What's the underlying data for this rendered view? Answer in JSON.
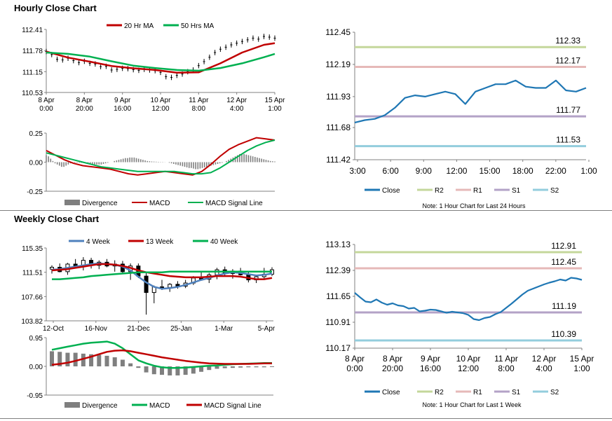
{
  "titles": {
    "hourly": "Hourly Close Chart",
    "weekly": "Weekly Close Chart"
  },
  "colors": {
    "ma_short": "#c00000",
    "ma_long": "#00b050",
    "ma_4w": "#4f81bd",
    "close": "#1f77b4",
    "r2": "#c4d79b",
    "r1": "#e6b9b8",
    "s1": "#b3a2c7",
    "s2": "#93cddd",
    "divergence": "#7f7f7f",
    "macd_hourly": "#c00000",
    "signal_hourly": "#00b050",
    "macd_weekly": "#00b050",
    "signal_weekly": "#c00000",
    "candle": "#000000"
  },
  "chart_data": [
    {
      "id": "hourly_price",
      "type": "line",
      "legend": [
        "20 Hr MA",
        "50 Hrs MA"
      ],
      "x_labels": [
        [
          "8 Apr",
          "0:00"
        ],
        [
          "8 Apr",
          "20:00"
        ],
        [
          "9 Apr",
          "16:00"
        ],
        [
          "10 Apr",
          "12:00"
        ],
        [
          "11 Apr",
          "8:00"
        ],
        [
          "12 Apr",
          "4:00"
        ],
        [
          "15 Apr",
          "1:00"
        ]
      ],
      "y_ticks": [
        "112.41",
        "111.78",
        "111.15",
        "110.53"
      ],
      "ylim": [
        110.53,
        112.41
      ],
      "series": [
        {
          "name": "Close",
          "style": "bars",
          "x": [
            0,
            3,
            6,
            9,
            12,
            15,
            18,
            21,
            24,
            27,
            30,
            33,
            36,
            39,
            42,
            45,
            48,
            51,
            54,
            57,
            60,
            63,
            66,
            69,
            72,
            75,
            78,
            81,
            84,
            87,
            90,
            93,
            96,
            99,
            102,
            105,
            108,
            111,
            114,
            117,
            120,
            123,
            126
          ],
          "values": [
            111.75,
            111.66,
            111.52,
            111.5,
            111.55,
            111.48,
            111.42,
            111.46,
            111.4,
            111.38,
            111.3,
            111.31,
            111.2,
            111.22,
            111.25,
            111.24,
            111.21,
            111.19,
            111.22,
            111.2,
            111.18,
            111.13,
            111.0,
            110.98,
            111.04,
            111.08,
            111.15,
            111.2,
            111.33,
            111.45,
            111.58,
            111.72,
            111.82,
            111.88,
            111.95,
            112.0,
            112.05,
            112.1,
            112.15,
            112.12,
            112.2,
            112.18,
            112.15
          ]
        },
        {
          "name": "20 Hr MA",
          "x": [
            0,
            12,
            24,
            36,
            48,
            60,
            72,
            84,
            96,
            108,
            120,
            126
          ],
          "values": [
            111.75,
            111.57,
            111.45,
            111.32,
            111.25,
            111.2,
            111.12,
            111.13,
            111.4,
            111.72,
            111.95,
            112.0
          ]
        },
        {
          "name": "50 Hrs MA",
          "x": [
            0,
            12,
            24,
            36,
            48,
            60,
            72,
            84,
            96,
            108,
            120,
            126
          ],
          "values": [
            111.72,
            111.68,
            111.6,
            111.46,
            111.33,
            111.26,
            111.2,
            111.18,
            111.26,
            111.4,
            111.58,
            111.68
          ]
        }
      ]
    },
    {
      "id": "hourly_macd",
      "type": "bar+line",
      "legend": [
        "Divergence",
        "MACD",
        "MACD Signal Line"
      ],
      "y_ticks": [
        "0.25",
        "0.00",
        "-0.25"
      ],
      "ylim": [
        -0.25,
        0.25
      ],
      "divergence": [
        0.06,
        0.05,
        0.03,
        0.01,
        -0.01,
        -0.02,
        -0.03,
        -0.04,
        -0.04,
        -0.03,
        -0.02,
        -0.01,
        -0.01,
        -0.005,
        -0.005,
        -0.005,
        -0.005,
        -0.005,
        -0.01,
        -0.01,
        -0.015,
        -0.015,
        -0.02,
        -0.02,
        -0.02,
        -0.02,
        -0.015,
        -0.01,
        -0.005,
        0.0,
        0.0,
        0.01,
        0.015,
        0.02,
        0.025,
        0.03,
        0.035,
        0.035,
        0.04,
        0.04,
        0.04,
        0.035,
        0.03,
        0.025,
        0.02,
        0.015,
        0.01,
        0.008,
        0.006,
        0.005,
        0.004,
        0.003,
        0.002,
        0.002,
        0.001,
        0.0,
        -0.005,
        -0.01,
        -0.015,
        -0.02,
        -0.025,
        -0.03,
        -0.035,
        -0.04,
        -0.045,
        -0.05,
        -0.05,
        -0.055,
        -0.06,
        -0.06,
        -0.055,
        -0.05,
        -0.045,
        -0.04,
        -0.035,
        -0.03,
        -0.025,
        -0.02,
        -0.015,
        -0.01,
        -0.005,
        0.0,
        0.01,
        0.02,
        0.03,
        0.04,
        0.05,
        0.06,
        0.07,
        0.07,
        0.07,
        0.065,
        0.06,
        0.055,
        0.05,
        0.045,
        0.04,
        0.035,
        0.03,
        0.025,
        0.02,
        0.015,
        0.01,
        0.008,
        0.006
      ],
      "macd": [
        0.1,
        0.06,
        0.02,
        -0.01,
        -0.03,
        -0.04,
        -0.05,
        -0.06,
        -0.08,
        -0.1,
        -0.11,
        -0.1,
        -0.09,
        -0.08,
        -0.09,
        -0.1,
        -0.11,
        -0.08,
        -0.02,
        0.05,
        0.11,
        0.15,
        0.18,
        0.21,
        0.2,
        0.19
      ],
      "signal": [
        0.08,
        0.06,
        0.04,
        0.02,
        0.0,
        -0.02,
        -0.04,
        -0.05,
        -0.06,
        -0.07,
        -0.08,
        -0.08,
        -0.08,
        -0.08,
        -0.08,
        -0.09,
        -0.1,
        -0.1,
        -0.09,
        -0.05,
        0.0,
        0.05,
        0.1,
        0.14,
        0.17,
        0.19
      ]
    },
    {
      "id": "hourly_pivot",
      "type": "line",
      "x_labels": [
        "3:00",
        "6:00",
        "9:00",
        "12:00",
        "15:00",
        "18:00",
        "22:00",
        "1:00"
      ],
      "y_ticks": [
        "112.45",
        "112.19",
        "111.93",
        "111.68",
        "111.42"
      ],
      "ylim": [
        111.42,
        112.45
      ],
      "levels": {
        "R2": "112.33",
        "R1": "112.17",
        "S1": "111.77",
        "S2": "111.53"
      },
      "level_values": {
        "R2": 112.33,
        "R1": 112.17,
        "S1": 111.77,
        "S2": 111.53
      },
      "close": [
        111.72,
        111.74,
        111.75,
        111.78,
        111.84,
        111.92,
        111.94,
        111.93,
        111.95,
        111.97,
        111.95,
        111.87,
        111.97,
        112.0,
        112.03,
        112.03,
        112.06,
        112.01,
        112.0,
        112.0,
        112.06,
        111.98,
        111.97,
        112.0
      ],
      "legend": [
        "Close",
        "R2",
        "R1",
        "S1",
        "S2"
      ],
      "note": "Note: 1 Hour Chart for Last 24 Hours"
    },
    {
      "id": "weekly_price",
      "type": "candlestick+line",
      "legend": [
        "4 Week",
        "13 Week",
        "40 Week"
      ],
      "x_labels": [
        "12-Oct",
        "16-Nov",
        "21-Dec",
        "25-Jan",
        "1-Mar",
        "5-Apr"
      ],
      "y_ticks": [
        "115.35",
        "111.51",
        "107.66",
        "103.82"
      ],
      "ylim": [
        103.82,
        115.35
      ],
      "candles": [
        [
          112.0,
          112.6,
          111.3,
          112.3
        ],
        [
          112.3,
          112.9,
          111.5,
          111.6
        ],
        [
          111.6,
          113.0,
          111.1,
          112.8
        ],
        [
          112.8,
          113.6,
          112.1,
          112.4
        ],
        [
          112.4,
          113.9,
          111.8,
          113.4
        ],
        [
          113.4,
          113.8,
          112.1,
          112.6
        ],
        [
          112.6,
          113.4,
          112.0,
          113.1
        ],
        [
          113.1,
          113.6,
          112.3,
          112.5
        ],
        [
          112.5,
          113.4,
          111.6,
          112.8
        ],
        [
          112.8,
          113.3,
          111.3,
          111.6
        ],
        [
          111.6,
          112.9,
          110.3,
          112.5
        ],
        [
          112.5,
          112.9,
          110.6,
          110.9
        ],
        [
          110.9,
          111.5,
          104.8,
          108.3
        ],
        [
          108.3,
          109.4,
          106.6,
          109.2
        ],
        [
          109.2,
          110.3,
          108.7,
          109.1
        ],
        [
          109.1,
          109.8,
          108.4,
          109.6
        ],
        [
          109.6,
          110.1,
          108.9,
          109.3
        ],
        [
          109.3,
          110.3,
          109.0,
          109.8
        ],
        [
          109.8,
          110.9,
          109.5,
          110.6
        ],
        [
          110.6,
          111.6,
          110.2,
          110.4
        ],
        [
          110.4,
          111.4,
          109.8,
          111.1
        ],
        [
          111.1,
          112.2,
          110.4,
          111.9
        ],
        [
          111.9,
          112.4,
          111.0,
          111.3
        ],
        [
          111.3,
          112.0,
          110.5,
          111.7
        ],
        [
          111.7,
          112.2,
          111.0,
          111.1
        ],
        [
          111.1,
          111.6,
          109.9,
          110.3
        ],
        [
          110.3,
          111.0,
          109.8,
          110.8
        ],
        [
          110.8,
          112.2,
          110.5,
          111.2
        ],
        [
          111.2,
          112.3,
          110.9,
          111.9
        ]
      ],
      "series": [
        {
          "name": "4 Week",
          "values": [
            111.9,
            112.0,
            112.2,
            112.4,
            112.6,
            112.8,
            112.9,
            112.8,
            112.7,
            112.4,
            111.8,
            110.8,
            109.9,
            109.2,
            108.9,
            109.0,
            109.2,
            109.5,
            109.9,
            110.3,
            110.6,
            111.0,
            111.3,
            111.5,
            111.4,
            111.2,
            111.0,
            111.1,
            111.3
          ]
        },
        {
          "name": "13 Week",
          "values": [
            111.8,
            111.9,
            112.0,
            112.2,
            112.4,
            112.6,
            112.8,
            112.8,
            112.7,
            112.5,
            112.2,
            111.8,
            111.5,
            111.3,
            111.1,
            110.9,
            110.8,
            110.7,
            110.7,
            110.7,
            110.8,
            110.9,
            110.9,
            110.9,
            110.8,
            110.6,
            110.4,
            110.4,
            110.6
          ]
        },
        {
          "name": "40 Week",
          "values": [
            110.4,
            110.4,
            110.5,
            110.6,
            110.7,
            110.9,
            111.0,
            111.1,
            111.2,
            111.3,
            111.4,
            111.5,
            111.5,
            111.5,
            111.5,
            111.6,
            111.6,
            111.6,
            111.6,
            111.6,
            111.6,
            111.6,
            111.6,
            111.6,
            111.6,
            111.6,
            111.6,
            111.6,
            111.6
          ]
        }
      ]
    },
    {
      "id": "weekly_macd",
      "type": "bar+line",
      "legend": [
        "Divergence",
        "MACD",
        "MACD Signal Line"
      ],
      "y_ticks": [
        "0.95",
        "0.00",
        "-0.95"
      ],
      "ylim": [
        -0.95,
        0.95
      ],
      "divergence": [
        0.5,
        0.48,
        0.45,
        0.45,
        0.42,
        0.4,
        0.38,
        0.35,
        0.3,
        0.22,
        0.1,
        -0.05,
        -0.2,
        -0.26,
        -0.28,
        -0.3,
        -0.3,
        -0.28,
        -0.24,
        -0.18,
        -0.12,
        -0.08,
        -0.06,
        -0.05,
        -0.04,
        -0.03,
        -0.03,
        -0.03,
        -0.02
      ],
      "macd": [
        0.55,
        0.6,
        0.65,
        0.7,
        0.75,
        0.78,
        0.8,
        0.82,
        0.75,
        0.6,
        0.4,
        0.2,
        0.1,
        0.02,
        -0.03,
        -0.05,
        -0.05,
        -0.04,
        -0.02,
        0.0,
        0.02,
        0.03,
        0.05,
        0.07,
        0.08,
        0.09,
        0.1,
        0.11,
        0.11
      ],
      "signal": [
        0.05,
        0.08,
        0.12,
        0.18,
        0.25,
        0.32,
        0.4,
        0.48,
        0.52,
        0.53,
        0.5,
        0.45,
        0.4,
        0.35,
        0.3,
        0.26,
        0.22,
        0.18,
        0.15,
        0.12,
        0.1,
        0.09,
        0.08,
        0.08,
        0.08,
        0.08,
        0.09,
        0.1,
        0.1
      ]
    },
    {
      "id": "weekly_pivot",
      "type": "line",
      "x_labels": [
        [
          "8 Apr",
          "0:00"
        ],
        [
          "8 Apr",
          "20:00"
        ],
        [
          "9 Apr",
          "16:00"
        ],
        [
          "10 Apr",
          "12:00"
        ],
        [
          "11 Apr",
          "8:00"
        ],
        [
          "12 Apr",
          "4:00"
        ],
        [
          "15 Apr",
          "1:00"
        ]
      ],
      "y_ticks": [
        "113.13",
        "112.39",
        "111.65",
        "110.91",
        "110.17"
      ],
      "ylim": [
        110.17,
        113.13
      ],
      "levels": {
        "R2": "112.91",
        "R1": "112.45",
        "S1": "111.19",
        "S2": "110.39"
      },
      "level_values": {
        "R2": 112.91,
        "R1": 112.45,
        "S1": 111.19,
        "S2": 110.39
      },
      "close": [
        111.75,
        111.62,
        111.5,
        111.48,
        111.56,
        111.47,
        111.41,
        111.45,
        111.39,
        111.37,
        111.3,
        111.32,
        111.22,
        111.24,
        111.27,
        111.26,
        111.22,
        111.18,
        111.21,
        111.19,
        111.17,
        111.12,
        111.0,
        110.97,
        111.03,
        111.06,
        111.14,
        111.2,
        111.32,
        111.44,
        111.57,
        111.7,
        111.81,
        111.87,
        111.93,
        111.99,
        112.04,
        112.08,
        112.13,
        112.1,
        112.18,
        112.16,
        112.12
      ],
      "legend": [
        "Close",
        "R2",
        "R1",
        "S1",
        "S2"
      ],
      "note": "Note: 1 Hour Chart for Last 1 Week"
    }
  ]
}
